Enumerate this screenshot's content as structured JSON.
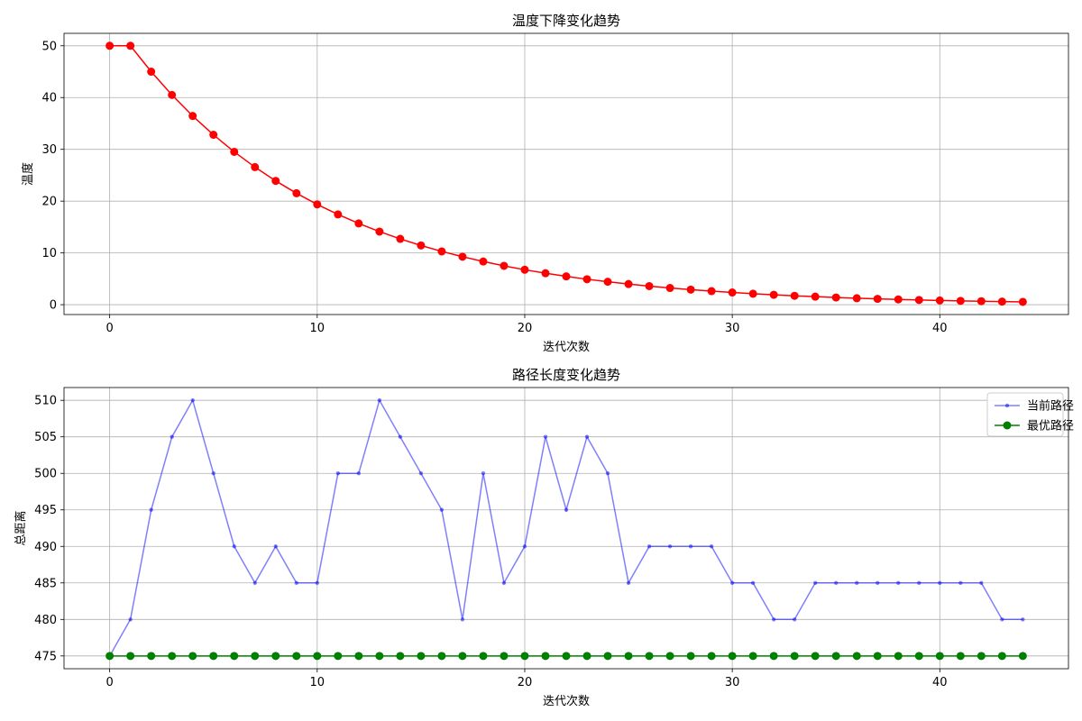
{
  "chart_data": [
    {
      "type": "line",
      "title": "温度下降变化趋势",
      "xlabel": "迭代次数",
      "ylabel": "温度",
      "xlim": [
        -2.2,
        46.2
      ],
      "ylim": [
        -1.9,
        52.4
      ],
      "x_ticks": [
        0,
        10,
        20,
        30,
        40
      ],
      "y_ticks": [
        0,
        10,
        20,
        30,
        40,
        50
      ],
      "grid": true,
      "legend": null,
      "series": [
        {
          "name": "",
          "color": "#ff0000",
          "marker": "circle",
          "x": [
            0,
            1,
            2,
            3,
            4,
            5,
            6,
            7,
            8,
            9,
            10,
            11,
            12,
            13,
            14,
            15,
            16,
            17,
            18,
            19,
            20,
            21,
            22,
            23,
            24,
            25,
            26,
            27,
            28,
            29,
            30,
            31,
            32,
            33,
            34,
            35,
            36,
            37,
            38,
            39,
            40,
            41,
            42,
            43,
            44
          ],
          "values": [
            50,
            50,
            45,
            40.5,
            36.45,
            32.81,
            29.52,
            26.57,
            23.91,
            21.52,
            19.37,
            17.43,
            15.69,
            14.12,
            12.71,
            11.44,
            10.29,
            9.27,
            8.34,
            7.5,
            6.75,
            6.08,
            5.47,
            4.92,
            4.43,
            3.99,
            3.59,
            3.23,
            2.91,
            2.62,
            2.36,
            2.12,
            1.91,
            1.72,
            1.55,
            1.39,
            1.25,
            1.13,
            1.02,
            0.91,
            0.82,
            0.74,
            0.67,
            0.6,
            0.54
          ]
        }
      ]
    },
    {
      "type": "line",
      "title": "路径长度变化趋势",
      "xlabel": "迭代次数",
      "ylabel": "总距离",
      "xlim": [
        -2.2,
        46.2
      ],
      "ylim": [
        473.25,
        511.75
      ],
      "x_ticks": [
        0,
        10,
        20,
        30,
        40
      ],
      "y_ticks": [
        475,
        480,
        485,
        490,
        495,
        500,
        505,
        510
      ],
      "grid": true,
      "legend": "top-right",
      "series": [
        {
          "name": "当前路径",
          "color": "#0000ff",
          "opacity": 0.5,
          "marker": "dot",
          "x": [
            0,
            1,
            2,
            3,
            4,
            5,
            6,
            7,
            8,
            9,
            10,
            11,
            12,
            13,
            14,
            15,
            16,
            17,
            18,
            19,
            20,
            21,
            22,
            23,
            24,
            25,
            26,
            27,
            28,
            29,
            30,
            31,
            32,
            33,
            34,
            35,
            36,
            37,
            38,
            39,
            40,
            41,
            42,
            43,
            44
          ],
          "values": [
            475,
            480,
            495,
            505,
            510,
            500,
            490,
            485,
            490,
            485,
            485,
            500,
            500,
            510,
            505,
            500,
            495,
            480,
            500,
            485,
            490,
            505,
            495,
            505,
            500,
            485,
            490,
            490,
            490,
            490,
            485,
            485,
            480,
            480,
            485,
            485,
            485,
            485,
            485,
            485,
            485,
            485,
            485,
            480,
            480
          ]
        },
        {
          "name": "最优路径",
          "color": "#008000",
          "opacity": 1,
          "marker": "circle",
          "x": [
            0,
            1,
            2,
            3,
            4,
            5,
            6,
            7,
            8,
            9,
            10,
            11,
            12,
            13,
            14,
            15,
            16,
            17,
            18,
            19,
            20,
            21,
            22,
            23,
            24,
            25,
            26,
            27,
            28,
            29,
            30,
            31,
            32,
            33,
            34,
            35,
            36,
            37,
            38,
            39,
            40,
            41,
            42,
            43,
            44
          ],
          "values": [
            475,
            475,
            475,
            475,
            475,
            475,
            475,
            475,
            475,
            475,
            475,
            475,
            475,
            475,
            475,
            475,
            475,
            475,
            475,
            475,
            475,
            475,
            475,
            475,
            475,
            475,
            475,
            475,
            475,
            475,
            475,
            475,
            475,
            475,
            475,
            475,
            475,
            475,
            475,
            475,
            475,
            475,
            475,
            475,
            475
          ]
        }
      ]
    }
  ]
}
